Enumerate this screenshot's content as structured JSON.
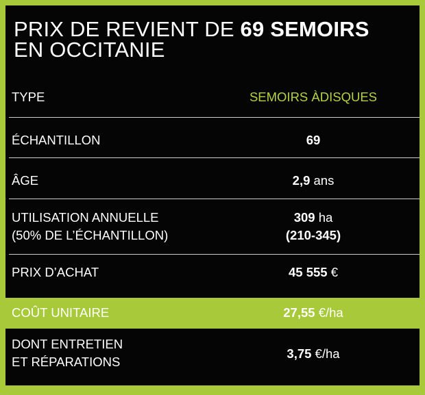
{
  "title": {
    "prefix": "PRIX DE REVIENT DE ",
    "bold": "69 SEMOIRS",
    "line2": "EN OCCITANIE"
  },
  "header": {
    "label": "TYPE",
    "value": "SEMOIRS ÀDISQUES"
  },
  "rows": [
    {
      "label": "ÉCHANTILLON",
      "value_bold": "69",
      "value_unit": ""
    },
    {
      "label": "ÂGE",
      "value_bold": "2,9",
      "value_unit": " ans"
    },
    {
      "label_line1": "UTILISATION ANNUELLE",
      "label_line2": "(50% DE L’ÉCHANTILLON)",
      "value_bold": "309",
      "value_unit": " ha",
      "value_line2": "(210-345)"
    },
    {
      "label": "PRIX D’ACHAT",
      "value_bold": "45 555",
      "value_unit": " €"
    },
    {
      "label": "COÛT UNITAIRE",
      "value_bold": "27,55",
      "value_unit": " €/ha",
      "highlighted": true
    },
    {
      "label_line1": "DONT ENTRETIEN",
      "label_line2": "ET RÉPARATIONS",
      "value_bold": "3,75",
      "value_unit": " €/ha"
    }
  ],
  "colors": {
    "accent": "#a8c93a",
    "background": "#050505",
    "text": "#ffffff",
    "header_value": "#b7d23e"
  }
}
